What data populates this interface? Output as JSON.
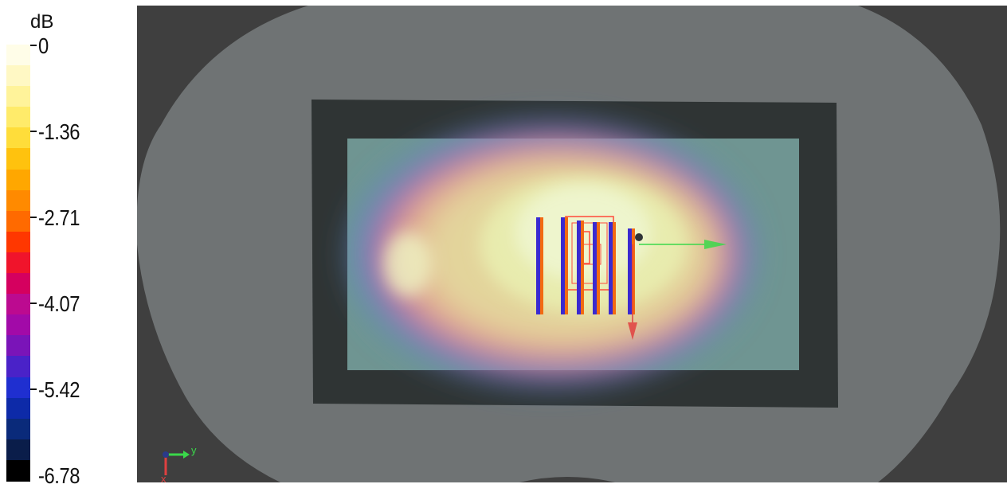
{
  "legend": {
    "unit": "dB",
    "ticks": [
      "0",
      "-1.36",
      "-2.71",
      "-4.07",
      "-5.42",
      "-6.78"
    ],
    "colors": [
      "#fffde8",
      "#fff8c4",
      "#fff39a",
      "#ffeb6a",
      "#ffdd3a",
      "#ffc20e",
      "#ffa700",
      "#ff8a00",
      "#ff6a00",
      "#ff3700",
      "#f0142b",
      "#d5005f",
      "#bc0a90",
      "#a20aa8",
      "#7a14b8",
      "#4a22c8",
      "#1f2fd0",
      "#0d2aa8",
      "#0a2a7a",
      "#0a1d4a",
      "#000000"
    ]
  },
  "viewport": {
    "axes": {
      "y_label": "y",
      "x_label": "x"
    },
    "colors": {
      "background": "#3f3f3f",
      "body_outline": "#6f7374",
      "substrate": "#2f3434",
      "phantom_plane": "#6f9592",
      "antenna_strips": "#f25a12",
      "axis_y_arrow": "#3ad84a",
      "axis_x_arrow": "#e04040"
    }
  }
}
